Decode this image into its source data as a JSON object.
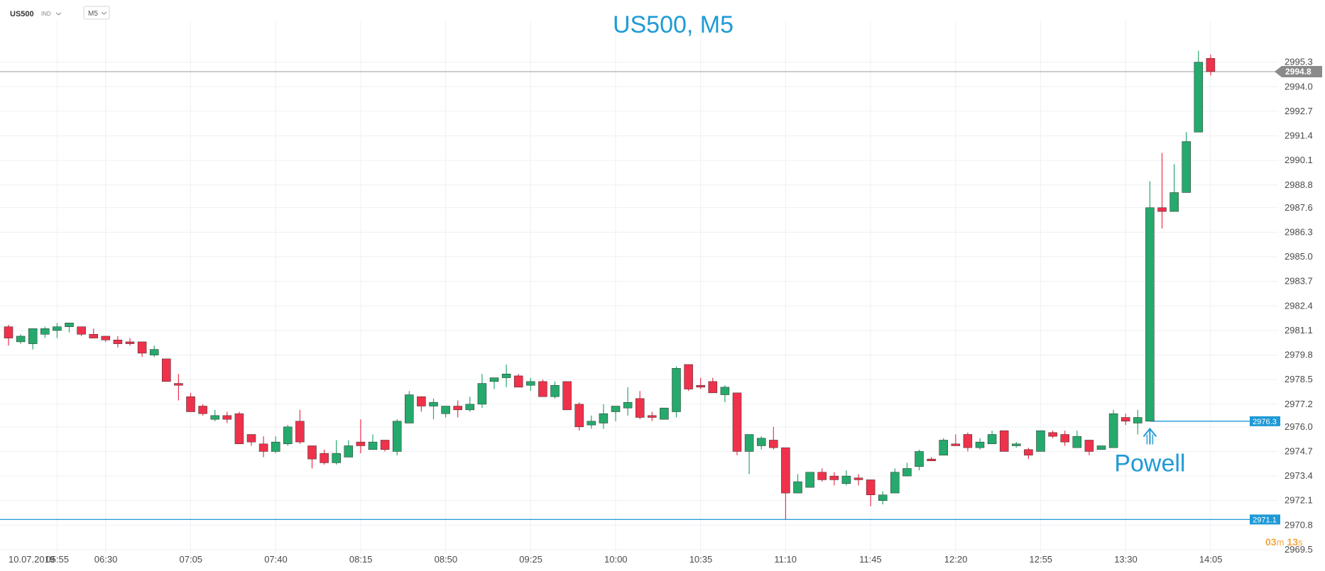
{
  "toolbar": {
    "symbol": "US500",
    "class_label": "IND",
    "timeframe": "M5"
  },
  "countdown": {
    "minutes_value": "03",
    "minutes_unit": "m",
    "seconds_value": "13",
    "seconds_unit": "s"
  },
  "colors": {
    "up": "#26a96c",
    "down": "#f0314b",
    "accent": "#1f9ad6",
    "price_tag": "#8a8a8a",
    "grid": "#eef0f2"
  },
  "chart_data": {
    "type": "candlestick",
    "title": "US500, M5",
    "ylim": [
      2969.5,
      2996.6
    ],
    "y_ticks": [
      "2995.3",
      "2994.0",
      "2992.7",
      "2991.4",
      "2990.1",
      "2988.8",
      "2987.6",
      "2986.3",
      "2985.0",
      "2983.7",
      "2982.4",
      "2981.1",
      "2979.8",
      "2978.5",
      "2977.2",
      "2976.0",
      "2974.7",
      "2973.4",
      "2972.1",
      "2970.8",
      "2969.5"
    ],
    "x_ticks": [
      {
        "label": "10.07.2019",
        "index": 0
      },
      {
        "label": "05:55",
        "index": 4
      },
      {
        "label": "06:30",
        "index": 8
      },
      {
        "label": "07:05",
        "index": 15
      },
      {
        "label": "07:40",
        "index": 22
      },
      {
        "label": "08:15",
        "index": 29
      },
      {
        "label": "08:50",
        "index": 36
      },
      {
        "label": "09:25",
        "index": 43
      },
      {
        "label": "10:00",
        "index": 50
      },
      {
        "label": "10:35",
        "index": 57
      },
      {
        "label": "11:10",
        "index": 64
      },
      {
        "label": "11:45",
        "index": 71
      },
      {
        "label": "12:20",
        "index": 78
      },
      {
        "label": "12:55",
        "index": 85
      },
      {
        "label": "13:30",
        "index": 92
      },
      {
        "label": "14:05",
        "index": 99
      }
    ],
    "candles": [
      [
        2981.3,
        2981.4,
        2980.3,
        2980.7
      ],
      [
        2980.5,
        2980.9,
        2980.4,
        2980.8
      ],
      [
        2980.4,
        2981.2,
        2980.1,
        2981.2
      ],
      [
        2980.9,
        2981.3,
        2980.7,
        2981.2
      ],
      [
        2981.1,
        2981.5,
        2980.7,
        2981.3
      ],
      [
        2981.3,
        2981.5,
        2981.0,
        2981.5
      ],
      [
        2981.3,
        2981.3,
        2980.8,
        2980.9
      ],
      [
        2980.9,
        2981.2,
        2980.7,
        2980.7
      ],
      [
        2980.8,
        2980.8,
        2980.5,
        2980.6
      ],
      [
        2980.6,
        2980.8,
        2980.2,
        2980.4
      ],
      [
        2980.5,
        2980.7,
        2980.3,
        2980.4
      ],
      [
        2980.5,
        2980.5,
        2979.7,
        2979.9
      ],
      [
        2979.8,
        2980.3,
        2979.7,
        2980.1
      ],
      [
        2979.6,
        2979.6,
        2978.4,
        2978.4
      ],
      [
        2978.3,
        2978.8,
        2977.4,
        2978.2
      ],
      [
        2977.6,
        2977.8,
        2976.8,
        2976.8
      ],
      [
        2977.1,
        2977.2,
        2976.6,
        2976.7
      ],
      [
        2976.4,
        2976.9,
        2976.3,
        2976.6
      ],
      [
        2976.6,
        2976.8,
        2976.2,
        2976.4
      ],
      [
        2976.7,
        2976.8,
        2975.1,
        2975.1
      ],
      [
        2975.6,
        2975.6,
        2975.0,
        2975.2
      ],
      [
        2975.1,
        2975.5,
        2974.4,
        2974.7
      ],
      [
        2974.7,
        2975.5,
        2974.6,
        2975.2
      ],
      [
        2975.1,
        2976.1,
        2975.0,
        2976.0
      ],
      [
        2976.3,
        2976.9,
        2975.1,
        2975.2
      ],
      [
        2975.0,
        2975.0,
        2973.8,
        2974.3
      ],
      [
        2974.6,
        2974.8,
        2974.0,
        2974.1
      ],
      [
        2974.1,
        2975.3,
        2974.0,
        2974.6
      ],
      [
        2974.4,
        2975.3,
        2974.4,
        2975.0
      ],
      [
        2975.2,
        2976.4,
        2974.6,
        2975.0
      ],
      [
        2974.8,
        2975.6,
        2974.8,
        2975.2
      ],
      [
        2975.3,
        2975.3,
        2974.7,
        2974.8
      ],
      [
        2974.7,
        2976.4,
        2974.5,
        2976.3
      ],
      [
        2976.2,
        2977.9,
        2976.2,
        2977.7
      ],
      [
        2977.6,
        2977.6,
        2976.8,
        2977.1
      ],
      [
        2977.1,
        2977.5,
        2976.4,
        2977.3
      ],
      [
        2976.7,
        2977.1,
        2976.5,
        2977.1
      ],
      [
        2977.1,
        2977.4,
        2976.5,
        2976.9
      ],
      [
        2976.9,
        2977.6,
        2976.8,
        2977.2
      ],
      [
        2977.2,
        2978.8,
        2977.0,
        2978.3
      ],
      [
        2978.4,
        2978.6,
        2978.0,
        2978.6
      ],
      [
        2978.6,
        2979.3,
        2978.1,
        2978.8
      ],
      [
        2978.7,
        2978.8,
        2978.1,
        2978.1
      ],
      [
        2978.2,
        2978.6,
        2977.9,
        2978.4
      ],
      [
        2978.4,
        2978.5,
        2977.6,
        2977.6
      ],
      [
        2977.6,
        2978.4,
        2977.5,
        2978.2
      ],
      [
        2978.4,
        2978.4,
        2976.9,
        2976.9
      ],
      [
        2977.2,
        2977.3,
        2975.8,
        2976.0
      ],
      [
        2976.1,
        2976.6,
        2975.9,
        2976.3
      ],
      [
        2976.2,
        2977.2,
        2975.9,
        2976.7
      ],
      [
        2976.8,
        2977.1,
        2976.3,
        2977.1
      ],
      [
        2977.0,
        2978.1,
        2976.6,
        2977.3
      ],
      [
        2977.5,
        2977.9,
        2976.4,
        2976.5
      ],
      [
        2976.6,
        2976.8,
        2976.3,
        2976.5
      ],
      [
        2976.4,
        2977.0,
        2976.4,
        2977.0
      ],
      [
        2976.8,
        2979.2,
        2976.5,
        2979.1
      ],
      [
        2979.3,
        2979.3,
        2977.9,
        2978.0
      ],
      [
        2978.2,
        2978.6,
        2978.0,
        2978.1
      ],
      [
        2978.4,
        2978.6,
        2977.8,
        2977.8
      ],
      [
        2977.7,
        2978.2,
        2977.3,
        2978.1
      ],
      [
        2977.8,
        2977.8,
        2974.5,
        2974.7
      ],
      [
        2974.7,
        2975.6,
        2973.5,
        2975.6
      ],
      [
        2975.0,
        2975.5,
        2974.8,
        2975.4
      ],
      [
        2975.3,
        2976.0,
        2974.8,
        2974.9
      ],
      [
        2974.9,
        2974.9,
        2971.1,
        2972.5
      ],
      [
        2972.5,
        2973.5,
        2972.5,
        2973.1
      ],
      [
        2972.8,
        2973.6,
        2972.8,
        2973.6
      ],
      [
        2973.6,
        2973.8,
        2973.1,
        2973.2
      ],
      [
        2973.4,
        2973.6,
        2972.9,
        2973.2
      ],
      [
        2973.0,
        2973.7,
        2972.9,
        2973.4
      ],
      [
        2973.3,
        2973.5,
        2972.9,
        2973.2
      ],
      [
        2973.2,
        2973.2,
        2971.8,
        2972.4
      ],
      [
        2972.1,
        2972.6,
        2971.9,
        2972.4
      ],
      [
        2972.5,
        2973.8,
        2972.5,
        2973.6
      ],
      [
        2973.4,
        2974.1,
        2973.4,
        2973.8
      ],
      [
        2973.9,
        2974.8,
        2973.7,
        2974.7
      ],
      [
        2974.3,
        2974.4,
        2974.2,
        2974.2
      ],
      [
        2974.5,
        2975.4,
        2974.5,
        2975.3
      ],
      [
        2975.1,
        2975.6,
        2975.0,
        2975.0
      ],
      [
        2975.6,
        2975.7,
        2974.7,
        2974.9
      ],
      [
        2974.9,
        2975.4,
        2974.8,
        2975.2
      ],
      [
        2975.1,
        2975.8,
        2975.1,
        2975.6
      ],
      [
        2975.8,
        2975.8,
        2974.7,
        2974.7
      ],
      [
        2975.0,
        2975.2,
        2974.9,
        2975.1
      ],
      [
        2974.8,
        2974.9,
        2974.3,
        2974.5
      ],
      [
        2974.7,
        2975.8,
        2974.7,
        2975.8
      ],
      [
        2975.7,
        2975.8,
        2975.4,
        2975.5
      ],
      [
        2975.6,
        2975.8,
        2975.0,
        2975.2
      ],
      [
        2974.9,
        2975.8,
        2974.9,
        2975.5
      ],
      [
        2975.3,
        2975.3,
        2974.5,
        2974.7
      ],
      [
        2974.8,
        2975.0,
        2974.8,
        2975.0
      ],
      [
        2974.9,
        2976.9,
        2974.9,
        2976.7
      ],
      [
        2976.5,
        2976.7,
        2976.1,
        2976.3
      ],
      [
        2976.2,
        2976.9,
        2975.6,
        2976.5
      ],
      [
        2976.3,
        2989.0,
        2976.3,
        2987.6
      ],
      [
        2987.6,
        2990.5,
        2986.5,
        2987.4
      ],
      [
        2987.4,
        2989.9,
        2987.4,
        2988.4
      ],
      [
        2988.4,
        2991.6,
        2988.4,
        2991.1
      ],
      [
        2991.6,
        2995.9,
        2991.6,
        2995.3
      ],
      [
        2995.5,
        2995.7,
        2994.6,
        2994.8
      ]
    ],
    "candle_format": [
      "open",
      "high",
      "low",
      "close"
    ],
    "current_price": {
      "value": 2994.8,
      "label": "2994.8"
    },
    "levels": [
      {
        "value": 2976.3,
        "label": "2976.3",
        "from_index": 94
      },
      {
        "value": 2971.1,
        "label": "2971.1",
        "from_index": 0
      }
    ],
    "annotations": [
      {
        "text": "Powell",
        "index": 94,
        "price": 2976.2
      }
    ],
    "grid": true
  }
}
